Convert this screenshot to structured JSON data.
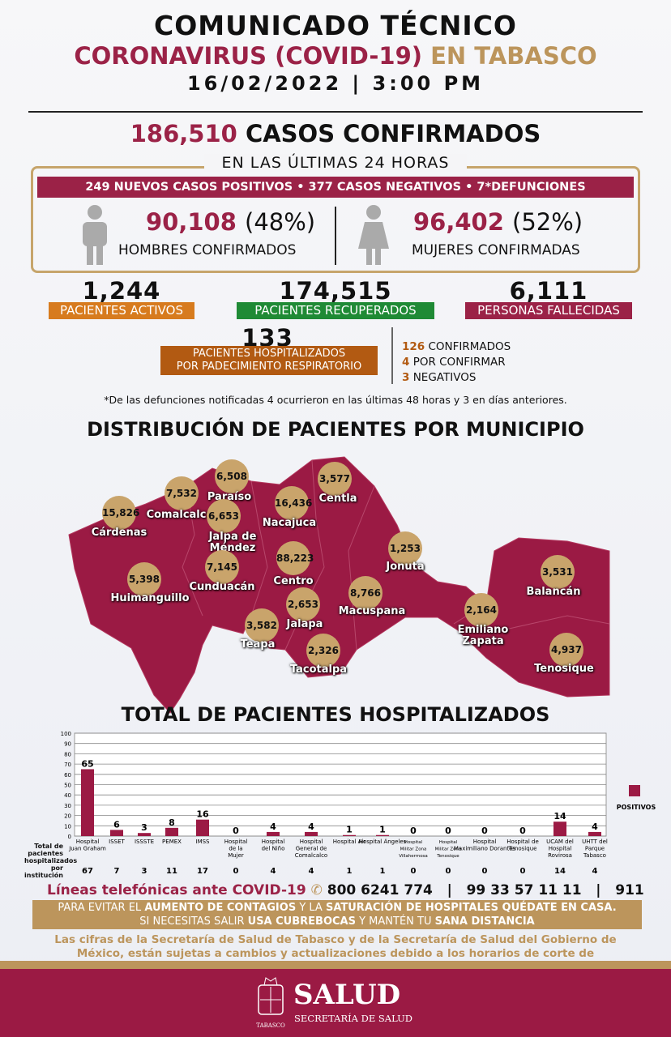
{
  "header": {
    "title": "COMUNICADO TÉCNICO",
    "subtitle_main": "CORONAVIRUS (COVID-19)",
    "subtitle_gold": "EN TABASCO",
    "datetime": "16/02/2022 | 3:00 PM"
  },
  "confirmed": {
    "number": "186,510",
    "label": "CASOS CONFIRMADOS"
  },
  "last24": {
    "heading": "EN LAS ÚLTIMAS 24 HORAS",
    "summary": "249 NUEVOS CASOS POSITIVOS • 377 CASOS NEGATIVOS • 7*DEFUNCIONES"
  },
  "men": {
    "number": "90,108",
    "pct": "(48%)",
    "label": "HOMBRES CONFIRMADOS",
    "icon": "man-icon"
  },
  "women": {
    "number": "96,402",
    "pct": "(52%)",
    "label": "MUJERES CONFIRMADAS",
    "icon": "woman-icon"
  },
  "stats": [
    {
      "number": "1,244",
      "label": "PACIENTES ACTIVOS",
      "color": "#d77b1e"
    },
    {
      "number": "174,515",
      "label": "PACIENTES RECUPERADOS",
      "color": "#1f8a35"
    },
    {
      "number": "6,111",
      "label": "PERSONAS FALLECIDAS",
      "color": "#9b2247"
    }
  ],
  "hospitalized": {
    "number": "133",
    "label1": "PACIENTES HOSPITALIZADOS",
    "label2": "POR PADECIMIENTO RESPIRATORIO",
    "color": "#b25a12",
    "breakdown": [
      {
        "n": "126",
        "label": " CONFIRMADOS"
      },
      {
        "n": "4",
        "label": " POR CONFIRMAR"
      },
      {
        "n": "3",
        "label": " NEGATIVOS"
      }
    ]
  },
  "note": "*De las defunciones notificadas 4 ocurrieron en las últimas 48 horas y 3 en días anteriores.",
  "map": {
    "title": "DISTRIBUCIÓN DE PACIENTES POR MUNICIPIO",
    "color": "#9b1a44",
    "municipalities": [
      {
        "name": "Cárdenas",
        "count": "15,826"
      },
      {
        "name": "Comalcalco",
        "count": "7,532"
      },
      {
        "name": "Paraíso",
        "count": "6,508"
      },
      {
        "name": "Jalpa de Méndez",
        "count": "6,653"
      },
      {
        "name": "Nacajuca",
        "count": "16,436"
      },
      {
        "name": "Centla",
        "count": "3,577"
      },
      {
        "name": "Centro",
        "count": "88,223"
      },
      {
        "name": "Cunduacán",
        "count": "7,145"
      },
      {
        "name": "Huimanguillo",
        "count": "5,398"
      },
      {
        "name": "Jonuta",
        "count": "1,253"
      },
      {
        "name": "Macuspana",
        "count": "8,766"
      },
      {
        "name": "Jalapa",
        "count": "2,653"
      },
      {
        "name": "Teapa",
        "count": "3,582"
      },
      {
        "name": "Tacotalpa",
        "count": "2,326"
      },
      {
        "name": "Emiliano Zapata",
        "count": "2,164"
      },
      {
        "name": "Balancán",
        "count": "3,531"
      },
      {
        "name": "Tenosique",
        "count": "4,937"
      }
    ]
  },
  "chart_data": {
    "type": "bar",
    "title": "TOTAL DE PACIENTES HOSPITALIZADOS",
    "ylim": [
      0,
      100
    ],
    "yticks": [
      0,
      10,
      20,
      30,
      40,
      50,
      60,
      70,
      80,
      90,
      100
    ],
    "grid": true,
    "legend_position": "right",
    "bar_color": "#9b1a44",
    "categories": [
      "Hospital Juan Graham",
      "ISSET",
      "ISSSTE",
      "PEMEX",
      "IMSS",
      "Hospital de la Mujer",
      "Hospital del Niño",
      "Hospital General de Comalcalco",
      "Hospital Air",
      "Hospital Ángeles",
      "Hospital Militar Zona Villahermosa",
      "Hospital Militar Zona Tenosique",
      "Hospital Maximiliano Dorantes",
      "Hospital de Tenosique",
      "UCAM del Hospital Rovirosa",
      "UHTT del Parque Tabasco"
    ],
    "series": [
      {
        "name": "POSITIVOS",
        "values": [
          65,
          6,
          3,
          8,
          16,
          0,
          4,
          4,
          1,
          1,
          0,
          0,
          0,
          0,
          14,
          4
        ]
      }
    ],
    "totals_label": "Total de pacientes hospitalizados por institución",
    "totals": [
      67,
      7,
      3,
      11,
      17,
      0,
      4,
      4,
      1,
      1,
      0,
      0,
      0,
      0,
      14,
      4
    ]
  },
  "phones": {
    "label_a": "Líneas telefónicas ante ",
    "label_b": "COVID-19",
    "icon": "phone-icon",
    "numbers": "800 6241 774   |   99 33 57 11 11   |   911"
  },
  "warning": {
    "p1": "PARA EVITAR EL ",
    "b1": "AUMENTO DE CONTAGIOS",
    "p2": " Y LA ",
    "b2": "SATURACIÓN DE HOSPITALES QUÉDATE EN CASA.",
    "p3": "SI NECESITAS SALIR ",
    "b3": "USA CUBREBOCAS",
    "p4": " Y MANTÉN TU ",
    "b4": "SANA DISTANCIA"
  },
  "disclaimer": "Las cifras de la Secretaría de Salud de Tabasco y de la Secretaría de Salud del Gobierno de México, están sujetas a cambios y actualizaciones debido a los horarios de corte de información.",
  "footer": {
    "logo_text": "SALUD",
    "logo_sub": "SECRETARÍA DE SALUD",
    "seal_text": "TABASCO"
  }
}
